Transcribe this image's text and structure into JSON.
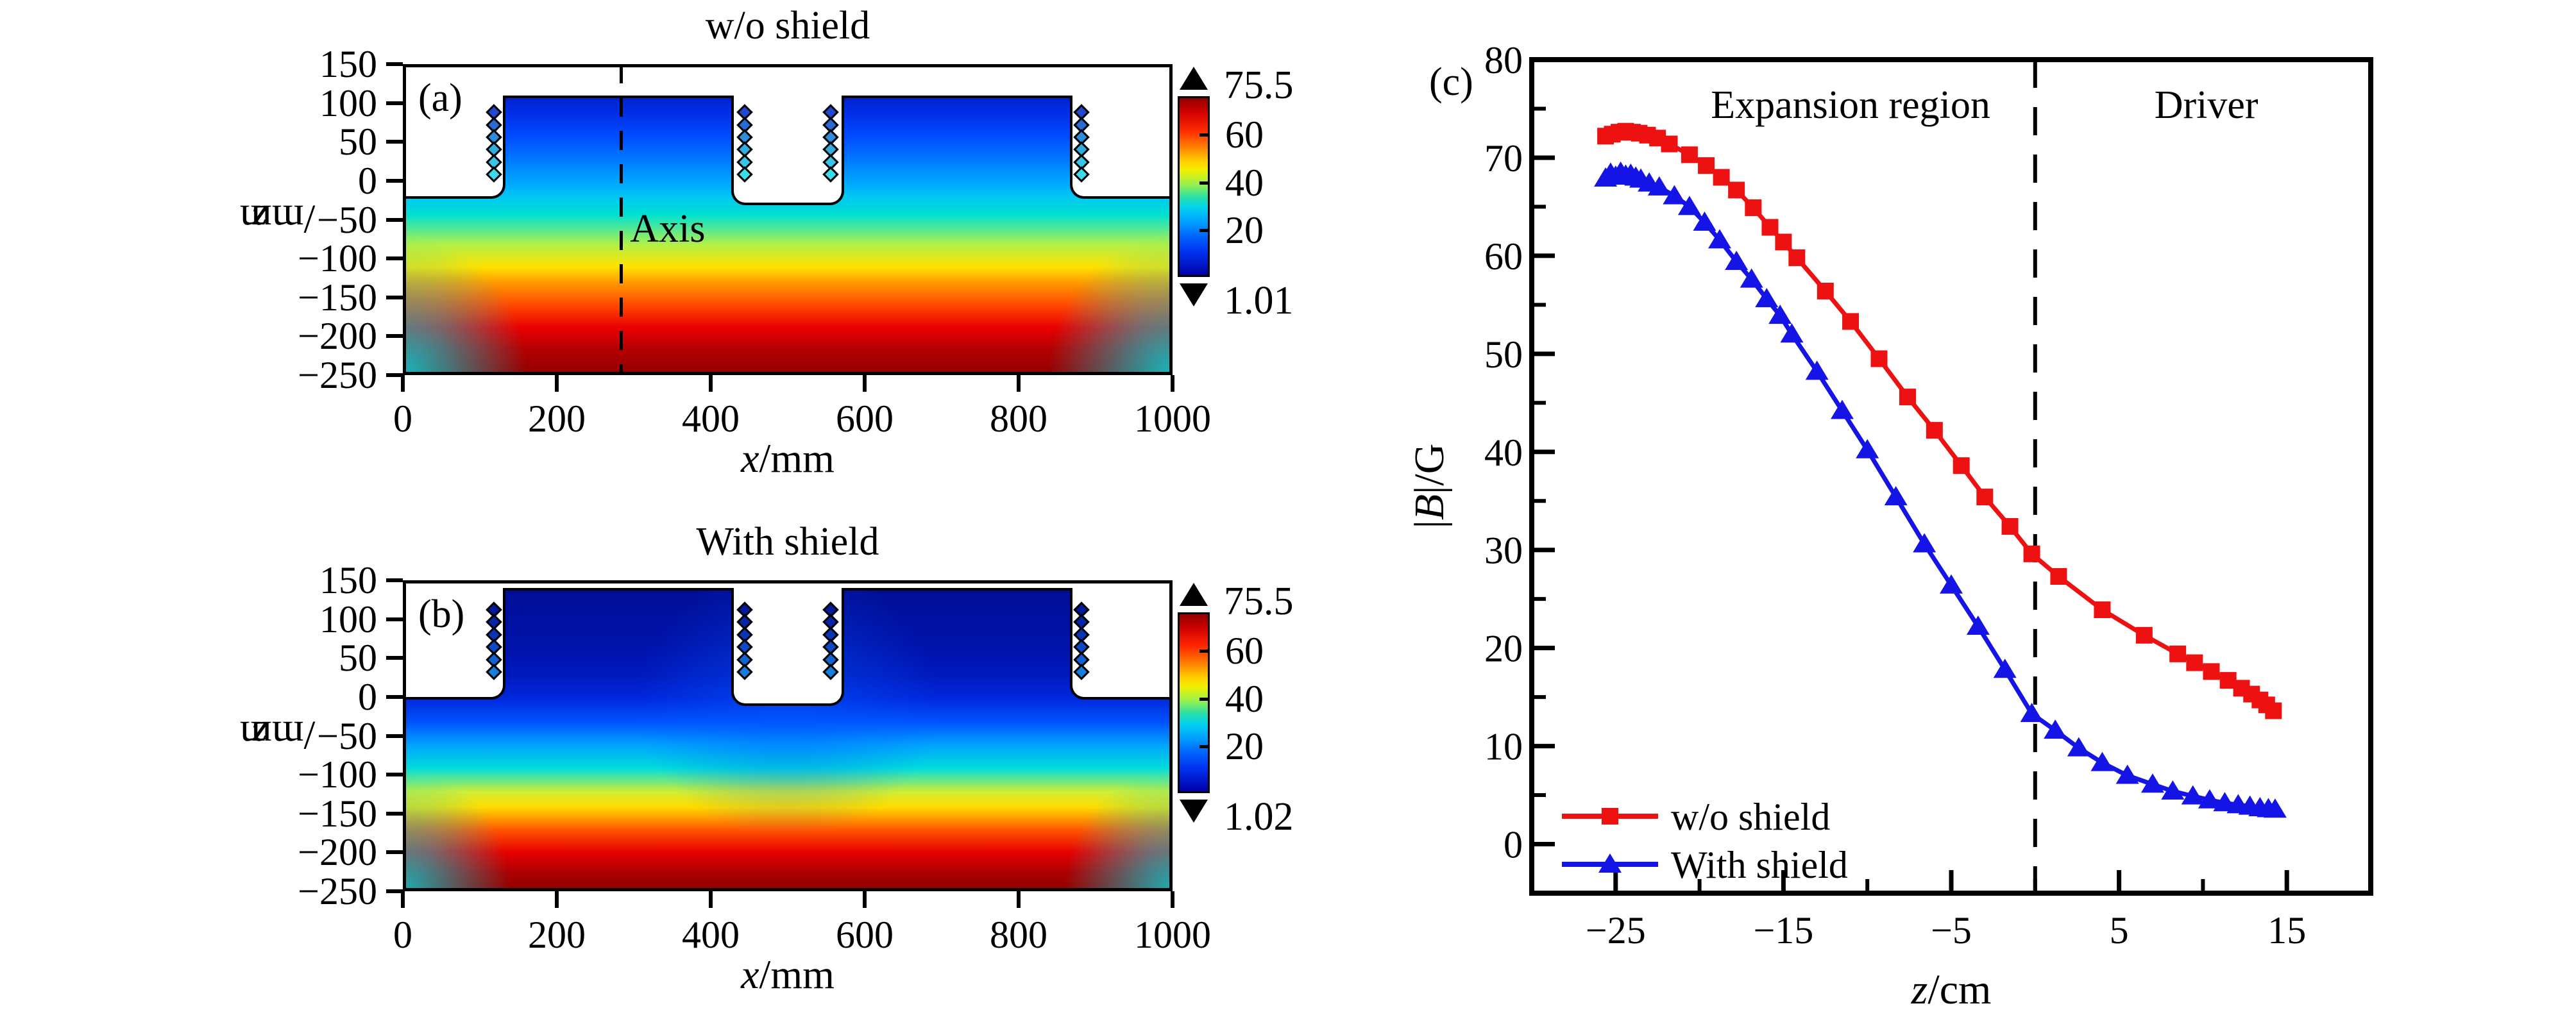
{
  "background": "#ffffff",
  "chart_data": [
    {
      "type": "heatmap",
      "panel_label": "(a)",
      "title": "w/o shield",
      "xlabel": {
        "var": "x",
        "unit": "/mm"
      },
      "ylabel": {
        "var": "z",
        "unit": "/mm"
      },
      "xlim": [
        0,
        1000
      ],
      "ylim": [
        -250,
        150
      ],
      "x_ticks": [
        0,
        200,
        400,
        600,
        800,
        1000
      ],
      "y_ticks": [
        150,
        100,
        50,
        0,
        -50,
        -100,
        -150,
        -200,
        -250
      ],
      "annotation": {
        "text": "Axis",
        "line_x_mm": 282
      },
      "colorbar": {
        "over_label": "75.5",
        "under_label": "1.01",
        "ticks": [
          60,
          40,
          20
        ],
        "range": [
          1.01,
          75.5
        ]
      },
      "geometry": {
        "blocks": [
          {
            "x0": 130,
            "x1": 430,
            "top": 110
          },
          {
            "x0": 570,
            "x1": 870,
            "top": 110
          }
        ],
        "outer_base_top": -20,
        "gap_bottom": -28,
        "magnet_columns_x": [
          118,
          444,
          556,
          882
        ],
        "magnet_z": [
          88,
          72,
          56,
          40,
          24,
          8
        ],
        "magnet_colors": [
          "#2547cf",
          "#2a6ad4",
          "#2f8cda",
          "#34abdf",
          "#38c3e7",
          "#3bdcee"
        ]
      },
      "field_description": "jet colormap |B| field, max ~75.5 G (dark red) near bottom center z=-250, decreasing to ~1 G (dark blue) at block tops"
    },
    {
      "type": "heatmap",
      "panel_label": "(b)",
      "title": "With shield",
      "xlabel": {
        "var": "x",
        "unit": "/mm"
      },
      "ylabel": {
        "var": "z",
        "unit": "/mm"
      },
      "xlim": [
        0,
        1000
      ],
      "ylim": [
        -250,
        150
      ],
      "x_ticks": [
        0,
        200,
        400,
        600,
        800,
        1000
      ],
      "y_ticks": [
        150,
        100,
        50,
        0,
        -50,
        -100,
        -150,
        -200,
        -250
      ],
      "colorbar": {
        "over_label": "75.5",
        "under_label": "1.02",
        "ticks": [
          60,
          40,
          20
        ],
        "range": [
          1.02,
          75.5
        ]
      },
      "geometry": {
        "blocks": [
          {
            "x0": 130,
            "x1": 430,
            "top": 140
          },
          {
            "x0": 570,
            "x1": 870,
            "top": 140
          }
        ],
        "outer_base_top": 0,
        "gap_bottom": -8,
        "magnet_columns_x": [
          118,
          444,
          556,
          882
        ],
        "magnet_z": [
          112,
          96,
          80,
          64,
          48,
          32
        ],
        "magnet_colors": [
          "#021a9b",
          "#0626a8",
          "#0a34b5",
          "#0e4ac3",
          "#1264d1",
          "#177ede"
        ]
      },
      "field_description": "jet colormap |B| field with shield: dark blue above z=0, red core near z=-220"
    },
    {
      "type": "line",
      "panel_label": "(c)",
      "xlabel_parts": [
        {
          "t": "z",
          "i": true
        },
        {
          "t": "/cm",
          "i": false
        }
      ],
      "ylabel_parts": [
        {
          "t": "|",
          "i": false
        },
        {
          "t": "B",
          "i": true
        },
        {
          "t": "|/G",
          "i": false
        }
      ],
      "xlim": [
        -30,
        20
      ],
      "ylim": [
        -5,
        80
      ],
      "x_major_ticks": [
        -25,
        -15,
        -5,
        5,
        15
      ],
      "x_minor_ticks": [
        -20,
        -10,
        0,
        10
      ],
      "y_major_ticks": [
        0,
        10,
        20,
        30,
        40,
        50,
        60,
        70,
        80
      ],
      "y_minor_ticks": [
        5,
        15,
        25,
        35,
        45,
        55,
        65,
        75
      ],
      "dashed_line_x": 0,
      "region_labels": [
        {
          "text": "Expansion region",
          "x": -11,
          "y": 75.5
        },
        {
          "text": "Driver",
          "x": 10.2,
          "y": 75.5
        }
      ],
      "legend": [
        {
          "label": "w/o shield",
          "color": "#ee1111",
          "marker": "square"
        },
        {
          "label": "With shield",
          "color": "#1414e6",
          "marker": "triangle"
        }
      ],
      "series": [
        {
          "name": "w/o shield",
          "color": "#ee1111",
          "marker": "square",
          "x": [
            -25.6,
            -25.2,
            -24.8,
            -24.4,
            -24.0,
            -23.6,
            -23.1,
            -22.5,
            -21.8,
            -20.6,
            -19.6,
            -18.7,
            -17.8,
            -16.8,
            -15.8,
            -15.0,
            -14.2,
            -12.5,
            -11.0,
            -9.3,
            -7.6,
            -6.0,
            -4.4,
            -3.0,
            -1.5,
            -0.2,
            1.4,
            4.0,
            6.5,
            8.5,
            9.5,
            10.5,
            11.5,
            12.3,
            12.9,
            13.4,
            13.8,
            14.2
          ],
          "y": [
            72.2,
            72.4,
            72.6,
            72.7,
            72.6,
            72.5,
            72.3,
            72.0,
            71.4,
            70.3,
            69.2,
            68.0,
            66.7,
            64.9,
            62.9,
            61.4,
            59.8,
            56.4,
            53.3,
            49.5,
            45.6,
            42.2,
            38.6,
            35.4,
            32.4,
            29.6,
            27.3,
            23.9,
            21.3,
            19.4,
            18.5,
            17.6,
            16.7,
            15.9,
            15.3,
            14.7,
            14.2,
            13.6
          ]
        },
        {
          "name": "With shield",
          "color": "#1414e6",
          "marker": "triangle",
          "x": [
            -25.6,
            -25.3,
            -25.0,
            -24.7,
            -24.4,
            -24.1,
            -23.8,
            -23.5,
            -23.0,
            -22.4,
            -21.5,
            -20.6,
            -19.7,
            -18.8,
            -17.8,
            -16.9,
            -16.0,
            -15.2,
            -14.5,
            -13.0,
            -11.5,
            -10.0,
            -8.3,
            -6.6,
            -5.0,
            -3.4,
            -1.8,
            -0.2,
            1.2,
            2.6,
            4.0,
            5.5,
            7.0,
            8.2,
            9.4,
            10.4,
            11.3,
            12.1,
            12.8,
            13.4,
            13.9,
            14.3
          ],
          "y": [
            67.9,
            68.4,
            68.1,
            68.5,
            68.2,
            68.3,
            68.0,
            67.8,
            67.4,
            67.0,
            66.1,
            65.0,
            63.4,
            61.6,
            59.4,
            57.6,
            55.6,
            53.9,
            52.0,
            48.2,
            44.2,
            40.2,
            35.4,
            30.6,
            26.4,
            22.2,
            17.8,
            13.3,
            11.6,
            9.8,
            8.3,
            7.0,
            6.1,
            5.4,
            4.9,
            4.5,
            4.2,
            4.0,
            3.85,
            3.7,
            3.6,
            3.55
          ]
        }
      ]
    }
  ]
}
